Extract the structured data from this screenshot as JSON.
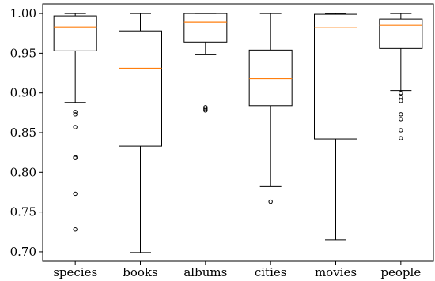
{
  "chart_data": {
    "type": "box",
    "title": "",
    "xlabel": "",
    "ylabel": "",
    "ylim": [
      0.688,
      1.012
    ],
    "yticks": [
      0.7,
      0.75,
      0.8,
      0.85,
      0.9,
      0.95,
      1.0
    ],
    "ytick_labels": [
      "0.70",
      "0.75",
      "0.80",
      "0.85",
      "0.90",
      "0.95",
      "1.00"
    ],
    "grid": false,
    "categories": [
      "species",
      "books",
      "albums",
      "cities",
      "movies",
      "people"
    ],
    "boxes": [
      {
        "category": "species",
        "whisker_low": 0.888,
        "q1": 0.953,
        "median": 0.983,
        "q3": 0.997,
        "whisker_high": 1.0,
        "fliers": [
          0.876,
          0.873,
          0.857,
          0.819,
          0.818,
          0.773,
          0.728
        ]
      },
      {
        "category": "books",
        "whisker_low": 0.699,
        "q1": 0.833,
        "median": 0.931,
        "q3": 0.978,
        "whisker_high": 1.0,
        "fliers": []
      },
      {
        "category": "albums",
        "whisker_low": 0.948,
        "q1": 0.964,
        "median": 0.989,
        "q3": 1.0,
        "whisker_high": 1.0,
        "fliers": [
          0.882,
          0.88,
          0.878
        ]
      },
      {
        "category": "cities",
        "whisker_low": 0.782,
        "q1": 0.884,
        "median": 0.918,
        "q3": 0.954,
        "whisker_high": 1.0,
        "fliers": [
          0.763
        ]
      },
      {
        "category": "movies",
        "whisker_low": 0.715,
        "q1": 0.842,
        "median": 0.982,
        "q3": 0.999,
        "whisker_high": 1.0,
        "fliers": []
      },
      {
        "category": "people",
        "whisker_low": 0.903,
        "q1": 0.956,
        "median": 0.985,
        "q3": 0.993,
        "whisker_high": 1.0,
        "fliers": [
          0.9,
          0.895,
          0.89,
          0.873,
          0.867,
          0.853,
          0.843
        ]
      }
    ],
    "colors": {
      "box": "#000000",
      "median": "#ff7f0e"
    }
  }
}
